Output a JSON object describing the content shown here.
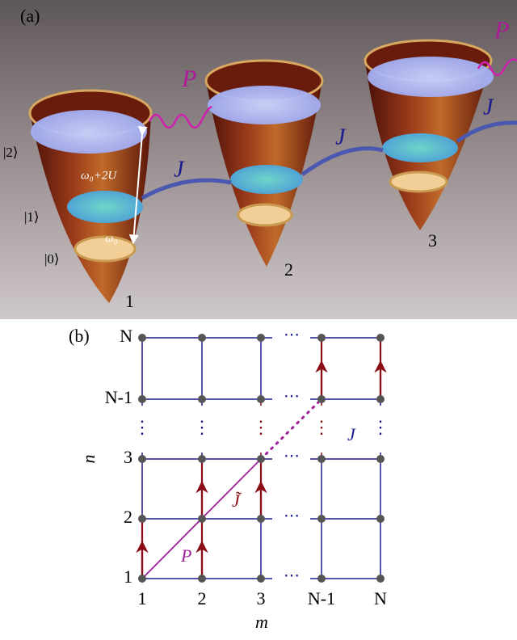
{
  "panel_a": {
    "label": "(a)",
    "sites": [
      "1",
      "2",
      "3"
    ],
    "levels": [
      "|0⟩",
      "|1⟩",
      "|2⟩"
    ],
    "transitions": [
      "ω₀",
      "ω₀+2U"
    ],
    "tunneling": "J",
    "drive": "P"
  },
  "panel_b": {
    "label": "(b)",
    "x_axis": {
      "title": "m",
      "ticks": [
        "1",
        "2",
        "3",
        "N-1",
        "N"
      ]
    },
    "y_axis": {
      "title": "n",
      "ticks": [
        "1",
        "2",
        "3",
        "N-1",
        "N"
      ]
    },
    "tunneling": "J",
    "tunneling_tilde": "J̃",
    "drive": "P",
    "h_ellipsis": "⋯",
    "v_ellipsis": "⋮"
  }
}
